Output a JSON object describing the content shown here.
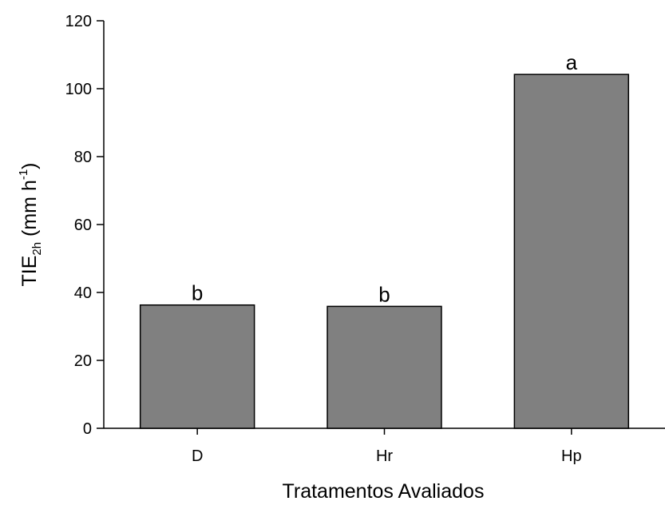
{
  "chart_data": {
    "type": "bar",
    "categories": [
      "D",
      "Hr",
      "Hp"
    ],
    "values": [
      36.3,
      35.9,
      104.2
    ],
    "data_labels": [
      "b",
      "b",
      "a"
    ],
    "title": "",
    "xlabel": "Tratamentos Avaliados",
    "ylabel": {
      "base": "TIE",
      "sub": "2h",
      "rest": " (mm h",
      "sup": "-1",
      "close": ")"
    },
    "ylim": [
      0,
      120
    ],
    "yticks": [
      0,
      20,
      40,
      60,
      80,
      100,
      120
    ],
    "bar_color": "#808080",
    "grid": false,
    "legend": "none"
  }
}
